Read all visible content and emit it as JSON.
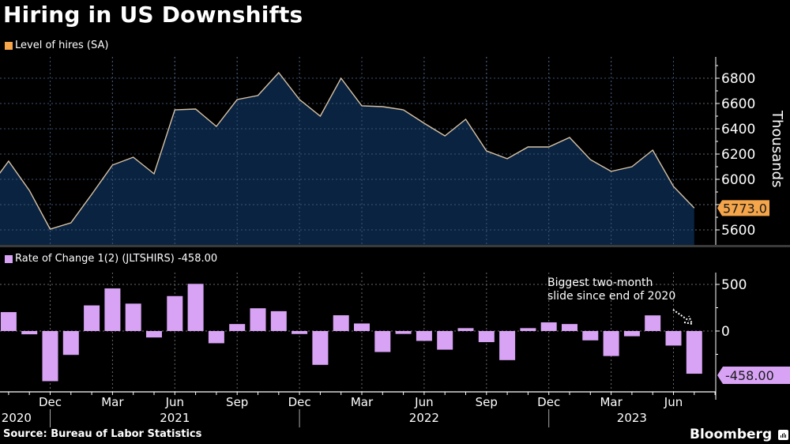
{
  "title": "Hiring in US Downshifts",
  "source": "Source: Bureau of Labor Statistics",
  "brand": "Bloomberg",
  "colors": {
    "background": "#000000",
    "area_fill": "#0b2544",
    "line": "#d9c3a5",
    "top_legend": "#f5a54a",
    "bars": "#d8a3f5",
    "grid": "#6a6a6a"
  },
  "chart_data": [
    {
      "type": "area",
      "title": "Hiring in US Downshifts",
      "legend": "Level of hires (SA)",
      "ylabel": "Thousands",
      "ylim": [
        5500,
        6900
      ],
      "yticks": [
        5600,
        5800,
        6000,
        6200,
        6400,
        6600,
        6800
      ],
      "ytick_labels": [
        "5600",
        "",
        "6000",
        "6200",
        "6400",
        "6600",
        "6800"
      ],
      "last_value_label": "5773.0",
      "grid": true,
      "x": [
        "2020-09",
        "2020-10",
        "2020-11",
        "2020-12",
        "2021-01",
        "2021-02",
        "2021-03",
        "2021-04",
        "2021-05",
        "2021-06",
        "2021-07",
        "2021-08",
        "2021-09",
        "2021-10",
        "2021-11",
        "2021-12",
        "2022-01",
        "2022-02",
        "2022-03",
        "2022-04",
        "2022-05",
        "2022-06",
        "2022-07",
        "2022-08",
        "2022-09",
        "2022-10",
        "2022-11",
        "2022-12",
        "2023-01",
        "2023-02",
        "2023-03",
        "2023-04",
        "2023-05",
        "2023-06",
        "2023-07"
      ],
      "values": [
        5920,
        6144,
        5912,
        5606,
        5656,
        5881,
        6113,
        6175,
        6044,
        6550,
        6556,
        6419,
        6631,
        6663,
        6844,
        6631,
        6500,
        6800,
        6581,
        6575,
        6550,
        6444,
        6344,
        6475,
        6225,
        6163,
        6256,
        6256,
        6331,
        6156,
        6063,
        6100,
        6231,
        5944,
        5773
      ]
    },
    {
      "type": "bar",
      "legend": "Rate of Change 1(2) (JLTSHIRS) -458.00",
      "ylim": [
        -650,
        600
      ],
      "yticks": [
        500,
        0
      ],
      "ytick_labels": [
        "500",
        "0"
      ],
      "last_value_label": "-458.00",
      "grid": true,
      "annotation": [
        "Biggest two-month",
        "slide since end of 2020"
      ],
      "x": [
        "2020-10",
        "2020-11",
        "2020-12",
        "2021-01",
        "2021-02",
        "2021-03",
        "2021-04",
        "2021-05",
        "2021-06",
        "2021-07",
        "2021-08",
        "2021-09",
        "2021-10",
        "2021-11",
        "2021-12",
        "2022-01",
        "2022-02",
        "2022-03",
        "2022-04",
        "2022-05",
        "2022-06",
        "2022-07",
        "2022-08",
        "2022-09",
        "2022-10",
        "2022-11",
        "2022-12",
        "2023-01",
        "2023-02",
        "2023-03",
        "2023-04",
        "2023-05",
        "2023-06",
        "2023-07"
      ],
      "values": [
        203,
        -35,
        -538,
        -256,
        275,
        457,
        294,
        -69,
        375,
        506,
        -131,
        75,
        244,
        213,
        -32,
        -363,
        169,
        81,
        -225,
        -31,
        -106,
        -200,
        31,
        -119,
        -312,
        31,
        93,
        75,
        -100,
        -268,
        -56,
        168,
        -156,
        -458
      ]
    }
  ],
  "xaxis": {
    "month_labels": [
      {
        "label": "Dec",
        "month": "2020-12"
      },
      {
        "label": "Mar",
        "month": "2021-03"
      },
      {
        "label": "Jun",
        "month": "2021-06"
      },
      {
        "label": "Sep",
        "month": "2021-09"
      },
      {
        "label": "Dec",
        "month": "2021-12"
      },
      {
        "label": "Mar",
        "month": "2022-03"
      },
      {
        "label": "Jun",
        "month": "2022-06"
      },
      {
        "label": "Sep",
        "month": "2022-09"
      },
      {
        "label": "Dec",
        "month": "2022-12"
      },
      {
        "label": "Mar",
        "month": "2023-03"
      },
      {
        "label": "Jun",
        "month": "2023-06"
      }
    ],
    "year_labels": [
      {
        "label": "2020",
        "month": "2020-10"
      },
      {
        "label": "2021",
        "month": "2021-06"
      },
      {
        "label": "2022",
        "month": "2022-06"
      },
      {
        "label": "2023",
        "month": "2023-04"
      }
    ],
    "year_separators": [
      "2020-12",
      "2021-12",
      "2022-12"
    ]
  }
}
